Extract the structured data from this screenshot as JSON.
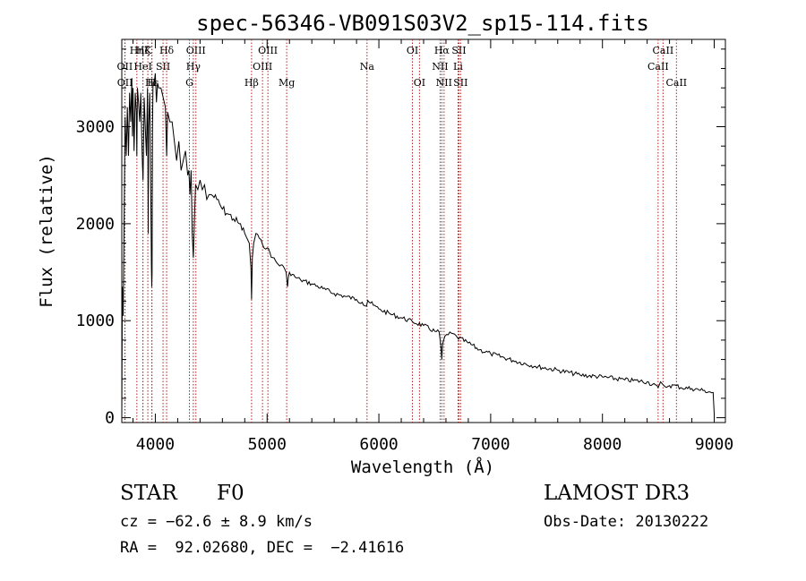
{
  "chart_data": {
    "type": "line",
    "title": "spec-56346-VB091S03V2_sp15-114.fits",
    "xlabel": "Wavelength (Å)",
    "ylabel": "Flux (relative)",
    "xlim": [
      3700,
      9100
    ],
    "ylim": [
      -50,
      3900
    ],
    "xticks": [
      4000,
      5000,
      6000,
      7000,
      8000,
      9000
    ],
    "yticks": [
      0,
      1000,
      2000,
      3000
    ],
    "grid": false,
    "series": [
      {
        "name": "spectrum",
        "x": [
          3700,
          3705,
          3712,
          3720,
          3730,
          3740,
          3750,
          3760,
          3770,
          3780,
          3790,
          3795,
          3800,
          3810,
          3820,
          3830,
          3835,
          3840,
          3850,
          3860,
          3870,
          3880,
          3885,
          3890,
          3895,
          3900,
          3910,
          3920,
          3930,
          3933,
          3936,
          3940,
          3950,
          3960,
          3965,
          3968,
          3971,
          3975,
          3980,
          3990,
          4000,
          4010,
          4020,
          4030,
          4050,
          4070,
          4090,
          4101,
          4110,
          4130,
          4150,
          4170,
          4190,
          4210,
          4230,
          4250,
          4270,
          4290,
          4300,
          4310,
          4320,
          4330,
          4340,
          4350,
          4360,
          4380,
          4400,
          4420,
          4440,
          4460,
          4480,
          4500,
          4550,
          4600,
          4650,
          4700,
          4750,
          4800,
          4840,
          4855,
          4861,
          4868,
          4880,
          4900,
          4930,
          4960,
          5000,
          5050,
          5100,
          5150,
          5170,
          5183,
          5190,
          5200,
          5250,
          5300,
          5400,
          5500,
          5600,
          5700,
          5800,
          5850,
          5890,
          5900,
          5950,
          6000,
          6100,
          6200,
          6300,
          6400,
          6500,
          6540,
          6556,
          6563,
          6570,
          6590,
          6650,
          6700,
          6800,
          6900,
          7000,
          7200,
          7400,
          7600,
          7800,
          8000,
          8200,
          8400,
          8498,
          8520,
          8542,
          8560,
          8600,
          8662,
          8700,
          8800,
          8900,
          8990,
          9000
        ],
        "values": [
          0,
          1350,
          1050,
          1950,
          3100,
          2700,
          3200,
          2700,
          3350,
          3050,
          3500,
          2900,
          3400,
          2750,
          3350,
          3150,
          2700,
          3400,
          3250,
          3050,
          3350,
          2800,
          2600,
          2450,
          2800,
          3300,
          3000,
          2700,
          3400,
          2850,
          1900,
          3000,
          3350,
          2200,
          1550,
          1350,
          1500,
          3000,
          3450,
          3450,
          3550,
          3250,
          3450,
          3400,
          3400,
          3300,
          3200,
          2700,
          3150,
          3050,
          3050,
          2850,
          2650,
          2850,
          2550,
          2650,
          2750,
          2500,
          2550,
          2300,
          2550,
          1900,
          1650,
          2050,
          2400,
          2350,
          2450,
          2350,
          2400,
          2250,
          2300,
          2300,
          2250,
          2150,
          2100,
          2050,
          2000,
          1900,
          1800,
          1550,
          1220,
          1650,
          1800,
          1900,
          1850,
          1780,
          1750,
          1650,
          1580,
          1550,
          1500,
          1350,
          1450,
          1500,
          1450,
          1420,
          1380,
          1330,
          1280,
          1250,
          1220,
          1190,
          1150,
          1210,
          1160,
          1120,
          1070,
          1030,
          990,
          950,
          890,
          880,
          720,
          600,
          760,
          840,
          870,
          830,
          770,
          700,
          660,
          590,
          530,
          490,
          440,
          420,
          390,
          370,
          310,
          370,
          340,
          320,
          330,
          330,
          310,
          300,
          280,
          260,
          40
        ]
      }
    ],
    "lines": [
      {
        "name": "Hη",
        "x": 3835
      },
      {
        "name": "Hζ",
        "x": 3889
      },
      {
        "name": "K",
        "x": 3933
      },
      {
        "name": "H",
        "x": 3968
      },
      {
        "name": "Hδ",
        "x": 4101
      },
      {
        "name": "OII",
        "x": 3727
      },
      {
        "name": "HeI",
        "x": 3889
      },
      {
        "name": "SII",
        "x": 4069
      },
      {
        "name": "OII",
        "x": 3729
      },
      {
        "name": "Hε",
        "x": 3970
      },
      {
        "name": "OIII",
        "x": 4363
      },
      {
        "name": "Hγ",
        "x": 4340
      },
      {
        "name": "G",
        "x": 4305
      },
      {
        "name": "Hβ",
        "x": 4861
      },
      {
        "name": "OIII",
        "x": 5007
      },
      {
        "name": "OIII",
        "x": 4959
      },
      {
        "name": "Mg",
        "x": 5175
      },
      {
        "name": "Na",
        "x": 5894
      },
      {
        "name": "OI",
        "x": 6300
      },
      {
        "name": "OI",
        "x": 6363
      },
      {
        "name": "Hα",
        "x": 6563
      },
      {
        "name": "NII",
        "x": 6548
      },
      {
        "name": "NII",
        "x": 6583
      },
      {
        "name": "SII",
        "x": 6716
      },
      {
        "name": "Li",
        "x": 6708
      },
      {
        "name": "SII",
        "x": 6731
      },
      {
        "name": "CaII",
        "x": 8542
      },
      {
        "name": "CaII",
        "x": 8498
      },
      {
        "name": "CaII",
        "x": 8662
      }
    ]
  },
  "info": {
    "class_label": "STAR",
    "subclass": "F0",
    "survey": "LAMOST DR3",
    "cz": "cz = −62.6 ± 8.9 km/s",
    "obs_date": "Obs-Date: 20130222",
    "radec": "RA =  92.02680, DEC =  −2.41616"
  }
}
